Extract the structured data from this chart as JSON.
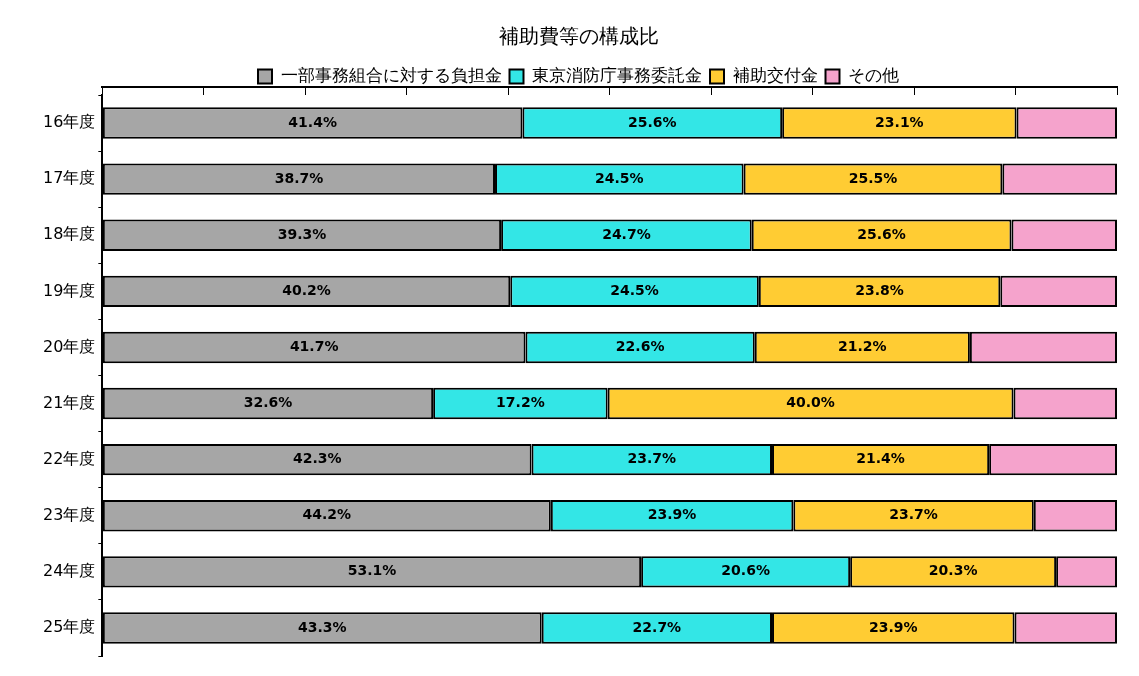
{
  "chart_data": {
    "type": "bar",
    "orientation": "horizontal",
    "stacked": true,
    "title": "補助費等の構成比",
    "categories": [
      "16年度",
      "17年度",
      "18年度",
      "19年度",
      "20年度",
      "21年度",
      "22年度",
      "23年度",
      "24年度",
      "25年度"
    ],
    "series": [
      {
        "name": "一部事務組合に対する負担金",
        "color": "#a6a6a6",
        "values": [
          41.4,
          38.7,
          39.3,
          40.2,
          41.7,
          32.6,
          42.3,
          44.2,
          53.1,
          43.3
        ],
        "value_labels": [
          "41.4%",
          "38.7%",
          "39.3%",
          "40.2%",
          "41.7%",
          "32.6%",
          "42.3%",
          "44.2%",
          "53.1%",
          "43.3%"
        ]
      },
      {
        "name": "東京消防庁事務委託金",
        "color": "#33e6e6",
        "values": [
          25.6,
          24.5,
          24.7,
          24.5,
          22.6,
          17.2,
          23.7,
          23.9,
          20.6,
          22.7
        ],
        "value_labels": [
          "25.6%",
          "24.5%",
          "24.7%",
          "24.5%",
          "22.6%",
          "17.2%",
          "23.7%",
          "23.9%",
          "20.6%",
          "22.7%"
        ]
      },
      {
        "name": "補助交付金",
        "color": "#ffcc33",
        "values": [
          23.1,
          25.5,
          25.6,
          23.8,
          21.2,
          40.0,
          21.4,
          23.7,
          20.3,
          23.9
        ],
        "value_labels": [
          "23.1%",
          "25.5%",
          "25.6%",
          "23.8%",
          "21.2%",
          "40.0%",
          "21.4%",
          "23.7%",
          "20.3%",
          "23.9%"
        ]
      },
      {
        "name": "その他",
        "color": "#f5a3cc",
        "values": [
          9.9,
          11.3,
          10.4,
          11.5,
          14.5,
          10.2,
          12.6,
          8.2,
          6.0,
          10.1
        ]
      }
    ],
    "xlim": [
      0,
      100
    ],
    "xticks": [
      {
        "value": 0,
        "label": null
      },
      {
        "value": 10,
        "label": null
      },
      {
        "value": 20,
        "label": null
      },
      {
        "value": 30,
        "label": null
      },
      {
        "value": 40,
        "label": null
      },
      {
        "value": 50,
        "label": null
      },
      {
        "value": 60,
        "label": null
      },
      {
        "value": 70,
        "label": null
      },
      {
        "value": 80,
        "label": null
      },
      {
        "value": 90,
        "label": null
      },
      {
        "value": 100,
        "label": null
      }
    ],
    "tick_labels": "y",
    "grid": false,
    "legend": "top"
  }
}
